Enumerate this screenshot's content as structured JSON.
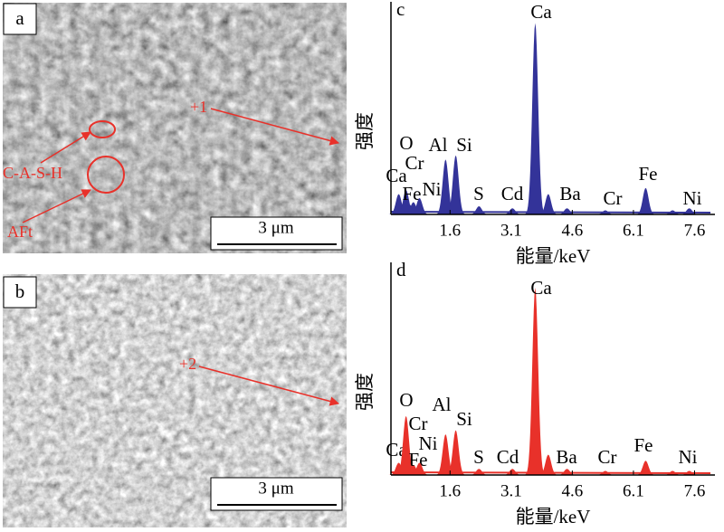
{
  "figure": {
    "panels": [
      {
        "label": "a",
        "annotations": [
          "+1",
          "C-A-S-H",
          "AFt"
        ],
        "scale_bar": "3 μm"
      },
      {
        "label": "b",
        "annotations": [
          "+2"
        ],
        "scale_bar": "3 μm"
      }
    ]
  },
  "chart_data": [
    {
      "type": "spectrum",
      "panel_label": "c",
      "color": "#333399",
      "xlabel": "能量/keV",
      "ylabel": "强度",
      "xlim": [
        0.15,
        8.1
      ],
      "ylim": [
        0,
        100
      ],
      "xticks": [
        1.6,
        3.1,
        4.6,
        6.1,
        7.6
      ],
      "peaks": [
        {
          "label": "Ca",
          "energy": 0.34,
          "height": 10
        },
        {
          "label": "O",
          "energy": 0.52,
          "height": 12
        },
        {
          "label": "Fe",
          "energy": 0.7,
          "height": 6
        },
        {
          "label": "Cr",
          "energy": 0.6,
          "height": 5
        },
        {
          "label": "Ni",
          "energy": 0.85,
          "height": 8
        },
        {
          "label": "Al",
          "energy": 1.49,
          "height": 27
        },
        {
          "label": "Si",
          "energy": 1.74,
          "height": 29
        },
        {
          "label": "S",
          "energy": 2.31,
          "height": 4
        },
        {
          "label": "Cd",
          "energy": 3.13,
          "height": 3
        },
        {
          "label": "Ca",
          "energy": 3.69,
          "height": 94
        },
        {
          "label": null,
          "energy": 4.01,
          "height": 10
        },
        {
          "label": "Ba",
          "energy": 4.47,
          "height": 3
        },
        {
          "label": "Cr",
          "energy": 5.41,
          "height": 2
        },
        {
          "label": "Fe",
          "energy": 6.4,
          "height": 13
        },
        {
          "label": null,
          "energy": 7.06,
          "height": 2
        },
        {
          "label": "Ni",
          "energy": 7.47,
          "height": 3
        }
      ]
    },
    {
      "type": "spectrum",
      "panel_label": "d",
      "color": "#e8312a",
      "xlabel": "能量/keV",
      "ylabel": "强度",
      "xlim": [
        0.15,
        8.1
      ],
      "ylim": [
        0,
        100
      ],
      "xticks": [
        1.6,
        3.1,
        4.6,
        6.1,
        7.6
      ],
      "peaks": [
        {
          "label": "Ca",
          "energy": 0.34,
          "height": 6
        },
        {
          "label": "O",
          "energy": 0.52,
          "height": 29
        },
        {
          "label": "Fe",
          "energy": 0.7,
          "height": 5
        },
        {
          "label": "Cr",
          "energy": 0.6,
          "height": 6
        },
        {
          "label": "Ni",
          "energy": 0.85,
          "height": 6
        },
        {
          "label": "Al",
          "energy": 1.49,
          "height": 20
        },
        {
          "label": "Si",
          "energy": 1.74,
          "height": 22
        },
        {
          "label": "S",
          "energy": 2.31,
          "height": 3
        },
        {
          "label": "Cd",
          "energy": 3.13,
          "height": 3
        },
        {
          "label": "Ca",
          "energy": 3.69,
          "height": 92
        },
        {
          "label": null,
          "energy": 4.01,
          "height": 10
        },
        {
          "label": "Ba",
          "energy": 4.47,
          "height": 3
        },
        {
          "label": "Cr",
          "energy": 5.41,
          "height": 2
        },
        {
          "label": "Fe",
          "energy": 6.4,
          "height": 7
        },
        {
          "label": null,
          "energy": 7.06,
          "height": 2
        },
        {
          "label": "Ni",
          "energy": 7.47,
          "height": 2
        }
      ]
    }
  ]
}
